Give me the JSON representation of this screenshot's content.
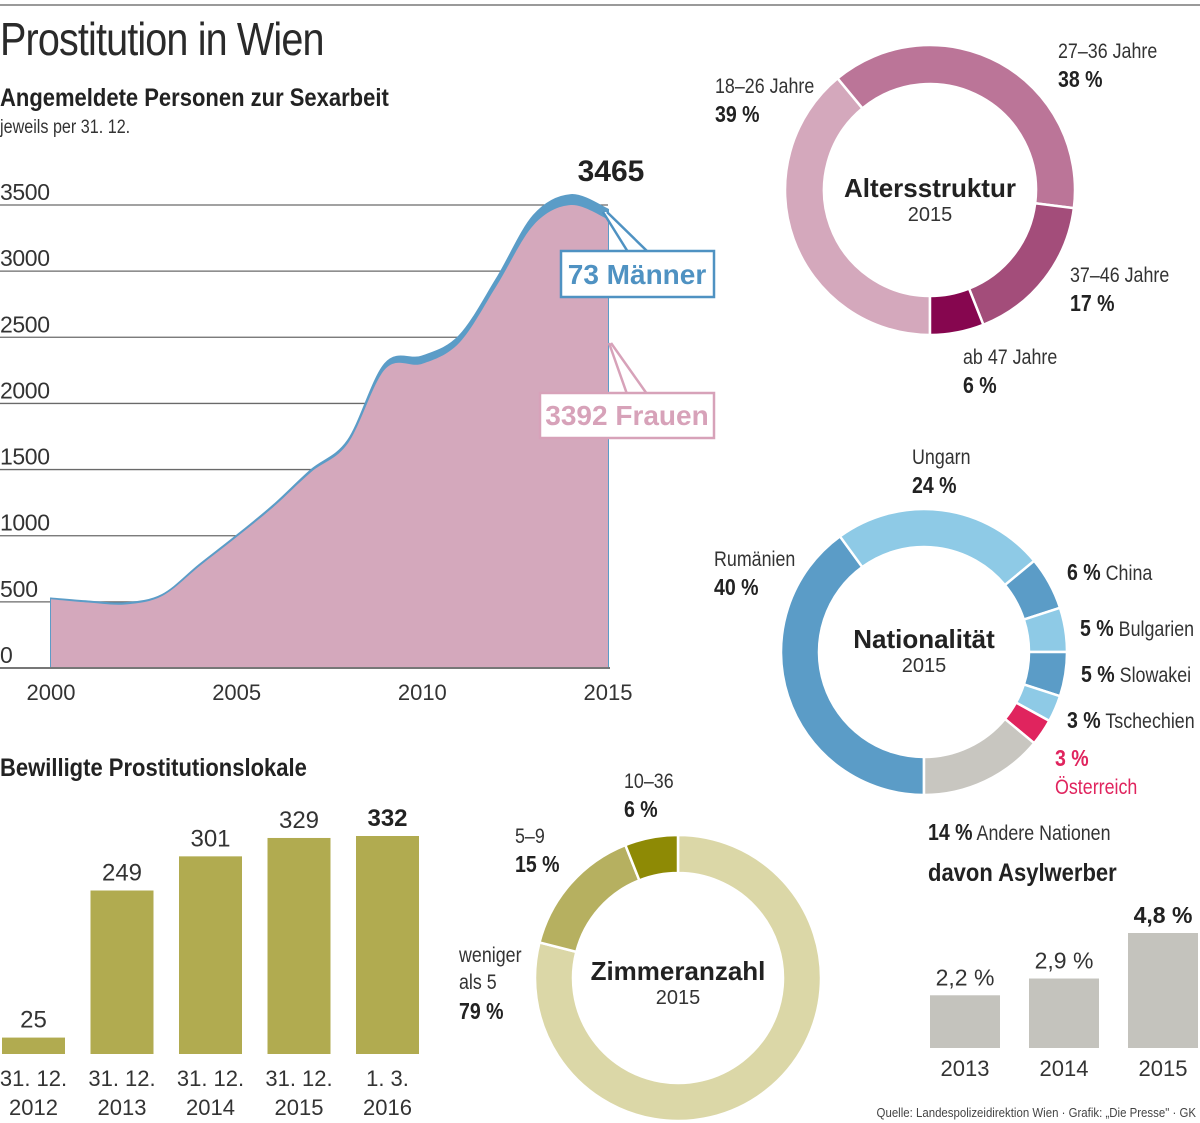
{
  "page": {
    "title": "Prostitution in Wien",
    "source": "Quelle: Landespolizeidirektion Wien · Grafik: „Die Presse\" · GK"
  },
  "colors": {
    "women": "#d4a8bc",
    "men": "#5b9cc7",
    "men_label": "#4f92c2",
    "women_label": "#d7a2b9",
    "gridline": "#555555",
    "lokale_bar": "#b1ab50",
    "asyl_bar": "#c4c3bd"
  },
  "chart_data": [
    {
      "id": "angemeldete",
      "type": "area",
      "title": "Angemeldete Personen zur Sexarbeit",
      "subtitle": "jeweils per 31. 12.",
      "xlabel": "",
      "ylabel": "",
      "x": [
        2000,
        2001,
        2002,
        2003,
        2004,
        2005,
        2006,
        2007,
        2008,
        2009,
        2010,
        2011,
        2012,
        2013,
        2014,
        2015
      ],
      "series": [
        {
          "name": "Frauen",
          "values": [
            520,
            495,
            480,
            545,
            770,
            990,
            1220,
            1480,
            1700,
            2260,
            2300,
            2460,
            2890,
            3350,
            3500,
            3392
          ]
        },
        {
          "name": "Männer",
          "values": [
            5,
            8,
            10,
            8,
            10,
            10,
            12,
            15,
            20,
            40,
            55,
            50,
            50,
            70,
            75,
            73
          ]
        }
      ],
      "stacked": true,
      "ylim": [
        0,
        3500
      ],
      "yticks": [
        0,
        500,
        1000,
        1500,
        2000,
        2500,
        3000,
        3500
      ],
      "ytick_labels": [
        "0",
        "500",
        "1000",
        "1500",
        "2000",
        "2500",
        "3000",
        "3500"
      ],
      "xticks": [
        2000,
        2005,
        2010,
        2015
      ],
      "xtick_labels": [
        "2000",
        "2005",
        "2010",
        "2015"
      ],
      "grid": true,
      "annotations": {
        "total": "3465",
        "men": "73 Männer",
        "women": "3392 Frauen"
      }
    },
    {
      "id": "altersstruktur",
      "type": "pie",
      "donut": true,
      "title": "Altersstruktur",
      "subtitle": "2015",
      "slices": [
        {
          "label": "18–26 Jahre",
          "pct_label": "39 %",
          "value": 39,
          "color": "#d4a8bc"
        },
        {
          "label": "27–36 Jahre",
          "pct_label": "38 %",
          "value": 38,
          "color": "#bb7598"
        },
        {
          "label": "37–46 Jahre",
          "pct_label": "17 %",
          "value": 17,
          "color": "#a34d7a"
        },
        {
          "label": "ab 47 Jahre",
          "pct_label": "6 %",
          "value": 6,
          "color": "#86064f"
        }
      ]
    },
    {
      "id": "nationalitaet",
      "type": "pie",
      "donut": true,
      "title": "Nationalität",
      "subtitle": "2015",
      "slices": [
        {
          "label": "Rumänien",
          "pct_label": "40 %",
          "value": 40,
          "color": "#5b9cc7"
        },
        {
          "label": "Ungarn",
          "pct_label": "24 %",
          "value": 24,
          "color": "#8ecae6"
        },
        {
          "label": "China",
          "pct_label": "6 %",
          "value": 6,
          "color": "#5b9cc7"
        },
        {
          "label": "Bulgarien",
          "pct_label": "5 %",
          "value": 5,
          "color": "#8ecae6"
        },
        {
          "label": "Slowakei",
          "pct_label": "5 %",
          "value": 5,
          "color": "#5b9cc7"
        },
        {
          "label": "Tschechien",
          "pct_label": "3 %",
          "value": 3,
          "color": "#8ecae6"
        },
        {
          "label": "Österreich",
          "pct_label": "3 %",
          "value": 3,
          "color": "#e0245e"
        },
        {
          "label": "Andere Nationen",
          "pct_label": "14 %",
          "value": 14,
          "color": "#c8c6c0"
        }
      ]
    },
    {
      "id": "lokale",
      "type": "bar",
      "title": "Bewilligte Prostitutionslokale",
      "categories": [
        "31. 12. 2012",
        "31. 12. 2013",
        "31. 12. 2014",
        "31. 12. 2015",
        "1. 3. 2016"
      ],
      "category_lines": [
        [
          "31. 12.",
          "2012"
        ],
        [
          "31. 12.",
          "2013"
        ],
        [
          "31. 12.",
          "2014"
        ],
        [
          "31. 12.",
          "2015"
        ],
        [
          "1. 3.",
          "2016"
        ]
      ],
      "values": [
        25,
        249,
        301,
        329,
        332
      ],
      "value_labels": [
        "25",
        "249",
        "301",
        "329",
        "332"
      ],
      "highlight_last": true,
      "ylim": [
        0,
        332
      ],
      "xlabel": "",
      "ylabel": ""
    },
    {
      "id": "zimmeranzahl",
      "type": "pie",
      "donut": true,
      "title": "Zimmeranzahl",
      "subtitle": "2015",
      "slices": [
        {
          "label": "weniger als 5",
          "pct_label": "79 %",
          "value": 79,
          "color": "#dbd7a7"
        },
        {
          "label": "5–9",
          "pct_label": "15 %",
          "value": 15,
          "color": "#b6b060"
        },
        {
          "label": "10–36",
          "pct_label": "6 %",
          "value": 6,
          "color": "#8e8a05"
        }
      ]
    },
    {
      "id": "asylwerber",
      "type": "bar",
      "title": "davon Asylwerber",
      "categories": [
        "2013",
        "2014",
        "2015"
      ],
      "values": [
        2.2,
        2.9,
        4.8
      ],
      "value_labels": [
        "2,2 %",
        "2,9 %",
        "4,8 %"
      ],
      "highlight_last": true,
      "ylim": [
        0,
        4.8
      ],
      "xlabel": "",
      "ylabel": ""
    }
  ],
  "labels": {
    "alter": {
      "l1826": "18–26 Jahre",
      "p1826": "39 %",
      "l2736": "27–36 Jahre",
      "p2736": "38 %",
      "l3746": "37–46 Jahre",
      "p3746": "17 %",
      "l47": "ab 47 Jahre",
      "p47": "6 %"
    },
    "nation": {
      "l_rum": "Rumänien",
      "p_rum": "40 %",
      "l_ung": "Ungarn",
      "p_ung": "24 %",
      "l_chi": "China",
      "p_chi": "6 %",
      "l_bul": "Bulgarien",
      "p_bul": "5 %",
      "l_slo": "Slowakei",
      "p_slo": "5 %",
      "l_tsc": "Tschechien",
      "p_tsc": "3 %",
      "l_oes": "Österreich",
      "p_oes": "3 %",
      "l_and": "Andere Nationen",
      "p_and": "14 %"
    },
    "zimmer": {
      "l_10": "10–36",
      "p_10": "6 %",
      "l_59": "5–9",
      "p_59": "15 %",
      "l_w1": "weniger",
      "l_w2": "als 5",
      "p_w": "79 %"
    }
  }
}
